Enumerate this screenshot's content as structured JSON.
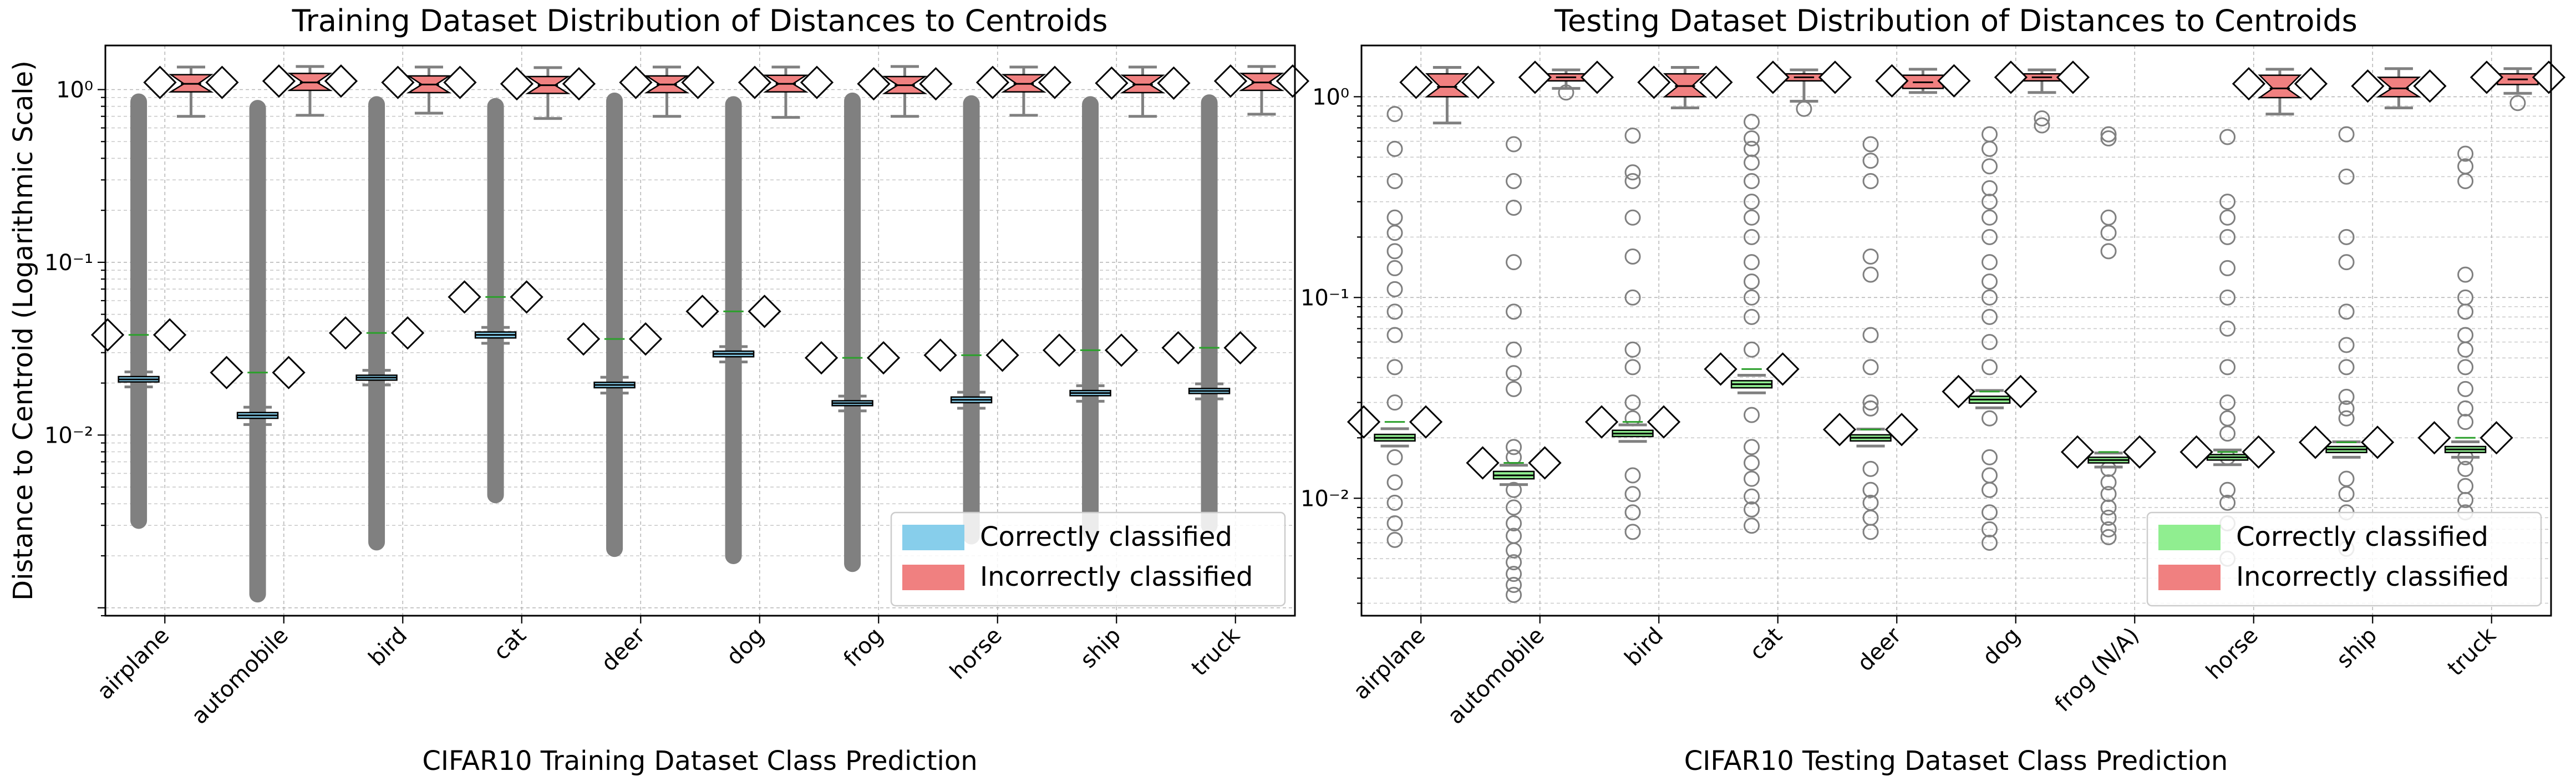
{
  "chart_data": [
    {
      "type": "box",
      "title": "Training Dataset Distribution of Distances to Centroids",
      "xlabel": "CIFAR10 Training Dataset Class Prediction",
      "ylabel": "Distance to Centroid (Logarithmic Scale)",
      "yscale": "log",
      "ylim": [
        0.0009,
        1.8
      ],
      "ytick_labels": [
        "10⁻²",
        "10⁻¹",
        "10⁰"
      ],
      "yticks": [
        0.01,
        0.1,
        1
      ],
      "grid": true,
      "legend_position": "lower-right",
      "categories": [
        "airplane",
        "automobile",
        "bird",
        "cat",
        "deer",
        "dog",
        "frog",
        "horse",
        "ship",
        "truck"
      ],
      "series": [
        {
          "name": "Correctly classified",
          "color": "#87ceeb",
          "medians": [
            0.021,
            0.013,
            0.0215,
            0.038,
            0.0195,
            0.0295,
            0.0153,
            0.016,
            0.0175,
            0.018
          ],
          "q1": [
            0.0203,
            0.0125,
            0.0208,
            0.0365,
            0.0188,
            0.0284,
            0.0148,
            0.0154,
            0.0169,
            0.0174
          ],
          "q3": [
            0.0218,
            0.0135,
            0.0222,
            0.0395,
            0.0202,
            0.0306,
            0.0158,
            0.0166,
            0.0181,
            0.0186
          ],
          "whisker_low": [
            0.019,
            0.0115,
            0.0195,
            0.034,
            0.0175,
            0.0265,
            0.0138,
            0.0143,
            0.0157,
            0.0162
          ],
          "whisker_high": [
            0.0232,
            0.0145,
            0.0237,
            0.042,
            0.0216,
            0.0325,
            0.0168,
            0.0177,
            0.0193,
            0.0198
          ],
          "means": [
            0.038,
            0.023,
            0.039,
            0.063,
            0.036,
            0.052,
            0.028,
            0.029,
            0.031,
            0.032
          ],
          "flier_min": [
            0.0032,
            0.0012,
            0.0024,
            0.0045,
            0.0022,
            0.002,
            0.0018,
            0.0026,
            0.0028,
            0.003
          ],
          "flier_max": [
            0.85,
            0.78,
            0.82,
            0.8,
            0.86,
            0.82,
            0.86,
            0.83,
            0.82,
            0.84
          ]
        },
        {
          "name": "Incorrectly classified",
          "color": "#f08080",
          "medians": [
            1.08,
            1.1,
            1.07,
            1.06,
            1.07,
            1.08,
            1.06,
            1.08,
            1.07,
            1.1
          ],
          "q1": [
            0.97,
            0.99,
            0.96,
            0.95,
            0.96,
            0.97,
            0.95,
            0.97,
            0.96,
            0.99
          ],
          "q3": [
            1.22,
            1.24,
            1.2,
            1.19,
            1.2,
            1.21,
            1.19,
            1.22,
            1.21,
            1.24
          ],
          "whisker_low": [
            0.7,
            0.71,
            0.73,
            0.68,
            0.7,
            0.69,
            0.7,
            0.71,
            0.7,
            0.72
          ],
          "whisker_high": [
            1.35,
            1.36,
            1.35,
            1.34,
            1.35,
            1.35,
            1.36,
            1.35,
            1.35,
            1.36
          ],
          "means": [
            1.1,
            1.12,
            1.1,
            1.08,
            1.1,
            1.1,
            1.08,
            1.1,
            1.09,
            1.12
          ]
        }
      ]
    },
    {
      "type": "box",
      "title": "Testing Dataset Distribution of Distances to Centroids",
      "xlabel": "CIFAR10 Testing Dataset Class Prediction",
      "ylabel": "",
      "yscale": "log",
      "ylim": [
        0.0026,
        1.8
      ],
      "ytick_labels": [
        "10⁻²",
        "10⁻¹",
        "10⁰"
      ],
      "yticks": [
        0.01,
        0.1,
        1
      ],
      "grid": true,
      "legend_position": "lower-right",
      "categories": [
        "airplane",
        "automobile",
        "bird",
        "cat",
        "deer",
        "dog",
        "frog (N/A)",
        "horse",
        "ship",
        "truck"
      ],
      "series": [
        {
          "name": "Correctly classified",
          "color": "#90ee90",
          "medians": [
            0.02,
            0.013,
            0.021,
            0.037,
            0.02,
            0.031,
            0.0155,
            0.016,
            0.0175,
            0.0175
          ],
          "q1": [
            0.0193,
            0.0125,
            0.0203,
            0.0355,
            0.0193,
            0.0298,
            0.015,
            0.0155,
            0.0169,
            0.0169
          ],
          "q3": [
            0.0208,
            0.0136,
            0.0218,
            0.0385,
            0.0207,
            0.0322,
            0.016,
            0.0165,
            0.0181,
            0.0181
          ],
          "whisker_low": [
            0.0182,
            0.0117,
            0.0192,
            0.0335,
            0.0182,
            0.0282,
            0.0143,
            0.0147,
            0.016,
            0.016
          ],
          "whisker_high": [
            0.0222,
            0.0146,
            0.0232,
            0.041,
            0.0221,
            0.0344,
            0.0168,
            0.0174,
            0.0191,
            0.0191
          ],
          "means": [
            0.024,
            0.015,
            0.024,
            0.044,
            0.022,
            0.034,
            0.017,
            0.017,
            0.019,
            0.02
          ],
          "flier_values": [
            [
              0.0062,
              0.0075,
              0.0095,
              0.012,
              0.016,
              0.03,
              0.045,
              0.065,
              0.085,
              0.11,
              0.14,
              0.17,
              0.21,
              0.25,
              0.38,
              0.55,
              0.82
            ],
            [
              0.0033,
              0.0037,
              0.0042,
              0.0048,
              0.0055,
              0.0065,
              0.0075,
              0.009,
              0.011,
              0.016,
              0.018,
              0.035,
              0.042,
              0.055,
              0.085,
              0.15,
              0.28,
              0.38,
              0.58
            ],
            [
              0.0068,
              0.0085,
              0.0105,
              0.013,
              0.025,
              0.03,
              0.045,
              0.055,
              0.1,
              0.16,
              0.25,
              0.38,
              0.42,
              0.64
            ],
            [
              0.0073,
              0.0088,
              0.0102,
              0.0125,
              0.015,
              0.018,
              0.026,
              0.055,
              0.08,
              0.1,
              0.12,
              0.15,
              0.2,
              0.25,
              0.3,
              0.38,
              0.47,
              0.55,
              0.62,
              0.75
            ],
            [
              0.0068,
              0.008,
              0.0095,
              0.011,
              0.014,
              0.028,
              0.03,
              0.045,
              0.065,
              0.13,
              0.16,
              0.38,
              0.48,
              0.58
            ],
            [
              0.006,
              0.007,
              0.0085,
              0.011,
              0.013,
              0.016,
              0.025,
              0.045,
              0.06,
              0.08,
              0.1,
              0.12,
              0.15,
              0.2,
              0.25,
              0.3,
              0.35,
              0.45,
              0.55,
              0.65
            ],
            [
              0.0064,
              0.007,
              0.008,
              0.009,
              0.0105,
              0.012,
              0.014,
              0.17,
              0.21,
              0.25,
              0.62,
              0.65
            ],
            [
              0.005,
              0.0075,
              0.0095,
              0.011,
              0.016,
              0.021,
              0.025,
              0.03,
              0.045,
              0.07,
              0.1,
              0.14,
              0.2,
              0.25,
              0.3,
              0.63
            ],
            [
              0.0056,
              0.0085,
              0.0105,
              0.0125,
              0.025,
              0.028,
              0.032,
              0.045,
              0.058,
              0.085,
              0.15,
              0.2,
              0.4,
              0.65
            ],
            [
              0.0085,
              0.0098,
              0.0115,
              0.014,
              0.016,
              0.024,
              0.028,
              0.035,
              0.045,
              0.055,
              0.065,
              0.085,
              0.1,
              0.13,
              0.38,
              0.45,
              0.52
            ]
          ]
        },
        {
          "name": "Incorrectly classified",
          "color": "#f08080",
          "medians": [
            1.12,
            1.25,
            1.13,
            1.25,
            1.18,
            1.25,
            null,
            1.1,
            1.1,
            1.22
          ],
          "q1": [
            1.0,
            1.2,
            1.0,
            1.2,
            1.1,
            1.2,
            null,
            0.99,
            1.0,
            1.15
          ],
          "q3": [
            1.3,
            1.3,
            1.3,
            1.3,
            1.28,
            1.3,
            null,
            1.28,
            1.25,
            1.3
          ],
          "whisker_low": [
            0.74,
            1.1,
            0.88,
            0.95,
            1.05,
            1.05,
            null,
            0.82,
            0.88,
            1.04
          ],
          "whisker_high": [
            1.4,
            1.36,
            1.4,
            1.36,
            1.37,
            1.36,
            null,
            1.37,
            1.38,
            1.38
          ],
          "means": [
            1.18,
            1.25,
            1.18,
            1.25,
            1.2,
            1.25,
            null,
            1.16,
            1.13,
            1.25
          ],
          "notch_style": [
            "hourglass",
            "flat",
            "hourglass",
            "flat",
            "flat",
            "flat",
            null,
            "hourglass",
            "hourglass",
            "flat"
          ],
          "flier_values": [
            [],
            [
              1.05
            ],
            [],
            [
              0.87
            ],
            [],
            [
              0.72,
              0.78
            ],
            [],
            [],
            [],
            [
              0.93
            ]
          ]
        }
      ]
    }
  ]
}
